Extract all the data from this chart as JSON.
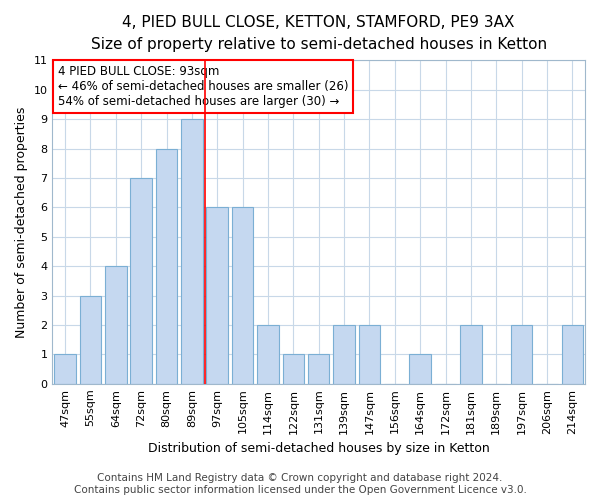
{
  "title": "4, PIED BULL CLOSE, KETTON, STAMFORD, PE9 3AX",
  "subtitle": "Size of property relative to semi-detached houses in Ketton",
  "xlabel": "Distribution of semi-detached houses by size in Ketton",
  "ylabel": "Number of semi-detached properties",
  "categories": [
    "47sqm",
    "55sqm",
    "64sqm",
    "72sqm",
    "80sqm",
    "89sqm",
    "97sqm",
    "105sqm",
    "114sqm",
    "122sqm",
    "131sqm",
    "139sqm",
    "147sqm",
    "156sqm",
    "164sqm",
    "172sqm",
    "181sqm",
    "189sqm",
    "197sqm",
    "206sqm",
    "214sqm"
  ],
  "values": [
    1,
    3,
    4,
    7,
    8,
    9,
    6,
    6,
    2,
    1,
    1,
    2,
    2,
    0,
    1,
    0,
    2,
    0,
    2,
    0,
    2
  ],
  "bar_color": "#C5D8F0",
  "bar_edge_color": "#7BAFD4",
  "vline_x": 5.5,
  "vline_color": "red",
  "ylim": [
    0,
    11
  ],
  "yticks": [
    0,
    1,
    2,
    3,
    4,
    5,
    6,
    7,
    8,
    9,
    10,
    11
  ],
  "annotation_title": "4 PIED BULL CLOSE: 93sqm",
  "annotation_line1": "← 46% of semi-detached houses are smaller (26)",
  "annotation_line2": "54% of semi-detached houses are larger (30) →",
  "footer1": "Contains HM Land Registry data © Crown copyright and database right 2024.",
  "footer2": "Contains public sector information licensed under the Open Government Licence v3.0.",
  "title_fontsize": 11,
  "subtitle_fontsize": 9.5,
  "axis_label_fontsize": 9,
  "tick_fontsize": 8,
  "footer_fontsize": 7.5,
  "annotation_fontsize": 8.5
}
